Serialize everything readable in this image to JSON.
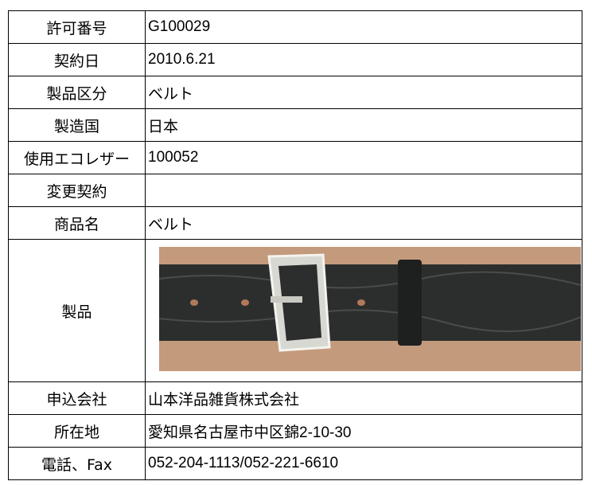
{
  "table": {
    "rows": [
      [
        "許可番号",
        "G100029"
      ],
      [
        "契約日",
        "2010.6.21"
      ],
      [
        "製品区分",
        "ベルト"
      ],
      [
        "製造国",
        "日本"
      ],
      [
        "使用エコレザー",
        "100052"
      ],
      [
        "変更契約"
      ],
      [
        "商品名",
        "ベルト"
      ],
      [
        "製品"
      ],
      [
        "申込会社",
        "山本洋品雑貨株式会社"
      ],
      [
        "所在地",
        "愛知県名古屋市中区錦2-10-30"
      ],
      [
        "電話、Fax",
        "052-204-1113/052-221-6610"
      ]
    ]
  }
}
